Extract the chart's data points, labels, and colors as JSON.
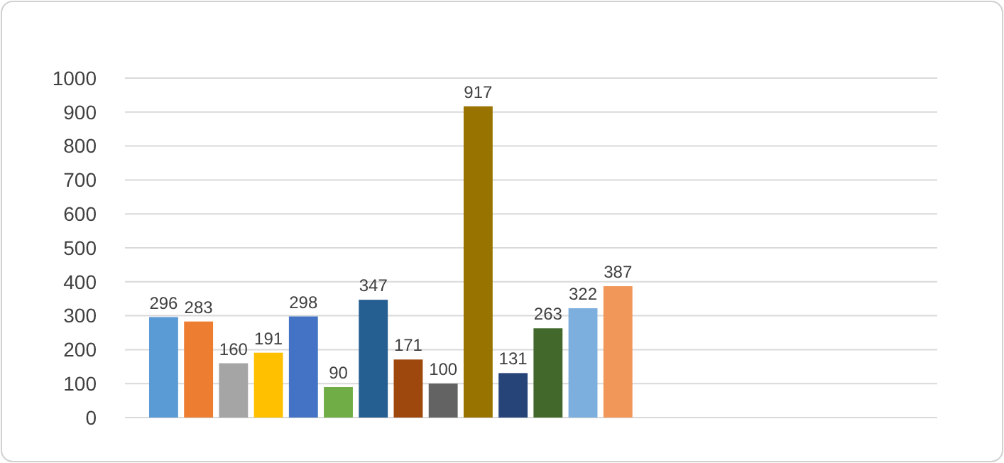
{
  "chart_data": {
    "type": "bar",
    "categories": [
      null,
      null,
      null,
      null,
      null,
      null,
      null,
      null,
      null,
      null,
      null,
      null,
      null,
      null
    ],
    "values": [
      296,
      283,
      160,
      191,
      298,
      90,
      347,
      171,
      100,
      917,
      131,
      263,
      322,
      387
    ],
    "colors": [
      "#5b9bd5",
      "#ed7d31",
      "#a5a5a5",
      "#ffc000",
      "#4472c4",
      "#70ad47",
      "#255e91",
      "#9e480e",
      "#636363",
      "#997300",
      "#264478",
      "#43682b",
      "#7cafdd",
      "#f1975a"
    ],
    "ylim": [
      0,
      1000
    ],
    "yticks": [
      0,
      100,
      200,
      300,
      400,
      500,
      600,
      700,
      800,
      900,
      1000
    ],
    "grid": "y",
    "data_labels": true
  }
}
